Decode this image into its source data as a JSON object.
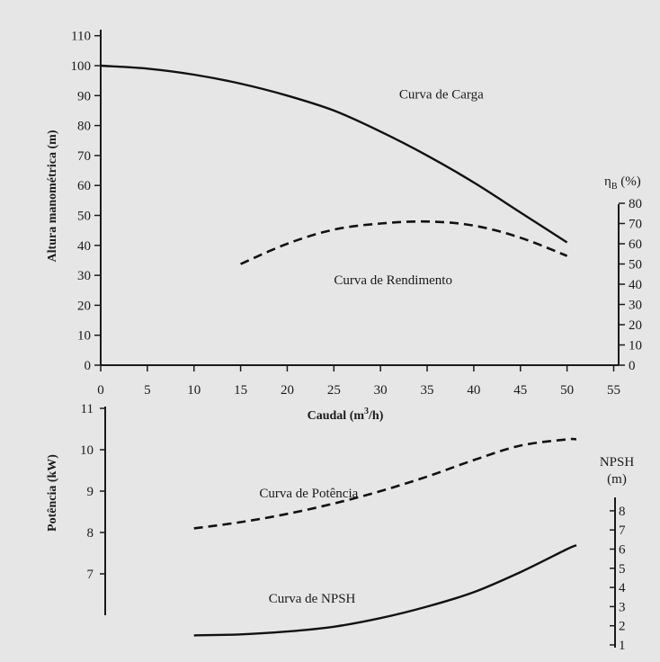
{
  "colors": {
    "paper": "#e7e6e6",
    "ink": "#1a1a1a"
  },
  "chart_data": [
    {
      "type": "line",
      "panel": "top",
      "xlabel": "Caudal (m³/h)",
      "xlabel_main": "Caudal (m",
      "xlabel_sup": "3",
      "xlabel_end": "/h)",
      "xlim": [
        0,
        55
      ],
      "xticks": [
        0,
        5,
        10,
        15,
        20,
        25,
        30,
        35,
        40,
        45,
        50,
        55
      ],
      "ylabel": "Altura manométrica (m)",
      "ylim": [
        0,
        110
      ],
      "yticks": [
        0,
        10,
        20,
        30,
        40,
        50,
        60,
        70,
        80,
        90,
        100,
        110
      ],
      "y2label": "η",
      "y2label_sub": "B",
      "y2label_unit": " (%)",
      "y2lim": [
        0,
        80
      ],
      "y2ticks": [
        0,
        10,
        20,
        30,
        40,
        50,
        60,
        70,
        80
      ],
      "grid": false,
      "series": [
        {
          "name": "Curva de Carga",
          "axis": "y",
          "style": "solid",
          "x": [
            0,
            5,
            10,
            15,
            20,
            25,
            30,
            35,
            40,
            45,
            50
          ],
          "y": [
            100,
            99,
            97,
            94,
            90,
            85,
            78,
            70,
            61,
            51,
            41
          ]
        },
        {
          "name": "Curva de Rendimento",
          "axis": "y2",
          "style": "dashed",
          "x": [
            15,
            20,
            25,
            30,
            35,
            40,
            45,
            50
          ],
          "y": [
            50,
            60,
            67,
            70,
            71,
            69,
            63,
            54
          ]
        }
      ],
      "annotations": [
        {
          "text": "Curva de Carga",
          "x": 32,
          "y": 89
        },
        {
          "text": "Curva de Rendimento",
          "x": 25,
          "y": 27
        }
      ]
    },
    {
      "type": "line",
      "panel": "bottom",
      "xlim": [
        0,
        55
      ],
      "ylabel": "Potência (kW)",
      "ylim": [
        6,
        11
      ],
      "yticks": [
        7,
        8,
        9,
        10,
        11
      ],
      "y2label": "NPSH (m)",
      "y2label_line1": "NPSH",
      "y2label_line2": "(m)",
      "y2lim": [
        0.5,
        8.5
      ],
      "y2ticks": [
        1,
        2,
        3,
        4,
        5,
        6,
        7,
        8
      ],
      "grid": false,
      "series": [
        {
          "name": "Curva de Potência",
          "axis": "y",
          "style": "dashed",
          "x": [
            10,
            15,
            20,
            25,
            30,
            35,
            40,
            45,
            50,
            51
          ],
          "y": [
            8.1,
            8.25,
            8.45,
            8.7,
            9.0,
            9.35,
            9.75,
            10.1,
            10.25,
            10.25
          ]
        },
        {
          "name": "Curva de NPSH",
          "axis": "y2",
          "style": "solid",
          "x": [
            10,
            15,
            20,
            25,
            30,
            35,
            40,
            45,
            50,
            51
          ],
          "y": [
            1.5,
            1.55,
            1.7,
            1.95,
            2.4,
            3.0,
            3.75,
            4.8,
            6.0,
            6.2
          ]
        }
      ],
      "annotations": [
        {
          "text": "Curva de Potência",
          "x": 17,
          "y": 8.85
        },
        {
          "text": "Curva de NPSH",
          "x": 18,
          "y": 6.3
        }
      ]
    }
  ]
}
